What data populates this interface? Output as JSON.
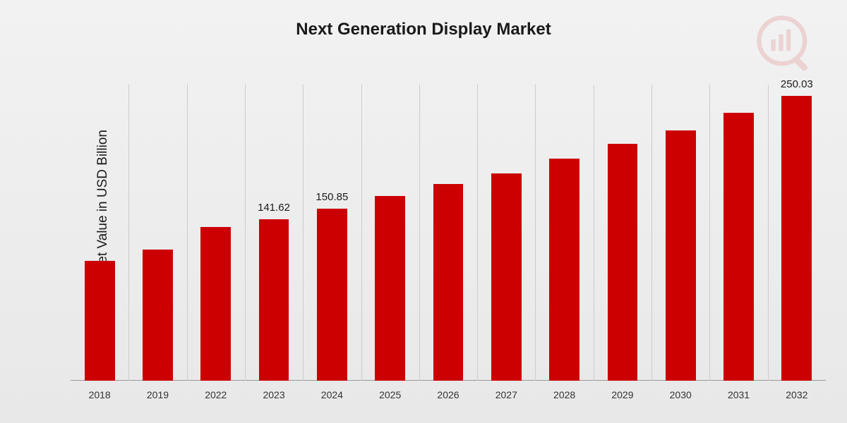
{
  "chart": {
    "type": "bar",
    "title": "Next Generation Display Market",
    "title_fontsize": 24,
    "y_axis_label": "Market Value in USD Billion",
    "y_label_fontsize": 19,
    "categories": [
      "2018",
      "2019",
      "2022",
      "2023",
      "2024",
      "2025",
      "2026",
      "2027",
      "2028",
      "2029",
      "2030",
      "2031",
      "2032"
    ],
    "values": [
      105,
      115,
      135,
      141.62,
      150.85,
      162,
      173,
      182,
      195,
      208,
      220,
      235,
      250.03
    ],
    "bar_color": "#cc0000",
    "background_gradient_start": "#f2f2f2",
    "background_gradient_end": "#e8e8e8",
    "grid_color": "#cccccc",
    "baseline_color": "#999999",
    "text_color": "#1a1a1a",
    "x_tick_fontsize": 14,
    "value_label_fontsize": 15,
    "value_labels": [
      {
        "index": 3,
        "text": "141.62"
      },
      {
        "index": 4,
        "text": "150.85"
      },
      {
        "index": 12,
        "text": "250.03"
      }
    ],
    "y_max": 260,
    "bar_width_ratio": 0.52,
    "watermark": {
      "type": "logo-icon",
      "circle_color": "#cc0000",
      "handle_color": "#cc0000",
      "opacity": 0.12
    }
  }
}
